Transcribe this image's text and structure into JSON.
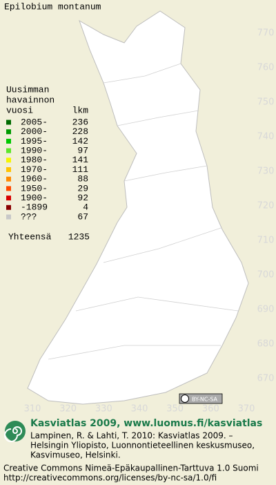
{
  "title": "Epilobium montanum",
  "legend": {
    "heading": [
      "Uusimman",
      "havainnon"
    ],
    "year_header": "vuosi",
    "count_header": "lkm",
    "rows": [
      {
        "label": "2005-",
        "count": 236,
        "color": "#006a00"
      },
      {
        "label": "2000-",
        "count": 228,
        "color": "#009a00"
      },
      {
        "label": "1995-",
        "count": 142,
        "color": "#00c800"
      },
      {
        "label": "1990-",
        "count": 97,
        "color": "#5ce62a"
      },
      {
        "label": "1980-",
        "count": 141,
        "color": "#f5f500"
      },
      {
        "label": "1970-",
        "count": 111,
        "color": "#ffc400"
      },
      {
        "label": "1960-",
        "count": 88,
        "color": "#ff8a00"
      },
      {
        "label": "1950-",
        "count": 29,
        "color": "#ff4a00"
      },
      {
        "label": "1900-",
        "count": 92,
        "color": "#d80000"
      },
      {
        "label": "-1899",
        "count": 4,
        "color": "#8a0000"
      },
      {
        "label": "???",
        "count": 67,
        "color": "#c8c8c8"
      }
    ],
    "total_label": "Yhteensä",
    "total": 1235
  },
  "grid": {
    "x_ticks": [
      310,
      320,
      330,
      340,
      350,
      360,
      370
    ],
    "y_ticks": [
      670,
      680,
      690,
      700,
      710,
      720,
      730,
      740,
      750,
      760,
      770
    ]
  },
  "badge": "BY-NC-SA",
  "footer": {
    "headline": "Kasviatlas 2009, www.luomus.fi/kasviatlas",
    "citation": [
      "Lampinen, R. & Lahti, T. 2010: Kasviatlas 2009. –",
      "Helsingin Yliopisto, Luonnontieteellinen keskusmuseo,",
      "Kasvimuseo, Helsinki."
    ],
    "license": [
      "Creative Commons Nimeä-Epäkaupallinen-Tarttuva 1.0 Suomi",
      "http://creativecommons.org/licenses/by-nc-sa/1.0/fi"
    ]
  }
}
